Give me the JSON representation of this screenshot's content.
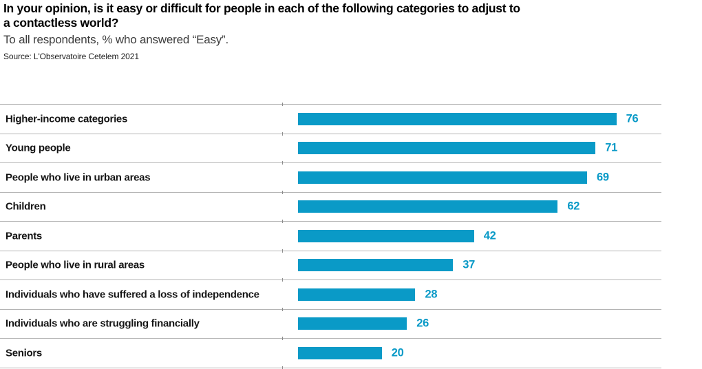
{
  "header": {
    "title_lines": [
      "In your opinion, is it easy or difficult for people in each of the following categories to adjust to",
      "a contactless world?"
    ],
    "subtitle": "To all respondents, % who answered “Easy”.",
    "source": "Source: L'Observatoire Cetelem 2021"
  },
  "chart_data": {
    "type": "bar",
    "orientation": "horizontal",
    "title": "In your opinion, is it easy or difficult for people in each of the following categories to adjust to a contactless world?",
    "subtitle": "To all respondents, % who answered “Easy”.",
    "source": "Source: L'Observatoire Cetelem 2021",
    "categories": [
      "Higher-income categories",
      "Young people",
      "People who live in urban areas",
      "Children",
      "Parents",
      "People who live in rural areas",
      "Individuals who have suffered a loss of independence",
      "Individuals who are struggling financially",
      "Seniors"
    ],
    "values": [
      76,
      71,
      69,
      62,
      42,
      37,
      28,
      26,
      20
    ],
    "xlabel": "",
    "ylabel": "",
    "xlim": [
      0,
      80
    ],
    "grid": "row-dividers-only",
    "legend": "none",
    "value_labels": "at-bar-end",
    "bar_color": "#0a9ac7",
    "value_label_color": "#0a9ac7",
    "divider_color": "#b3b3b3"
  }
}
